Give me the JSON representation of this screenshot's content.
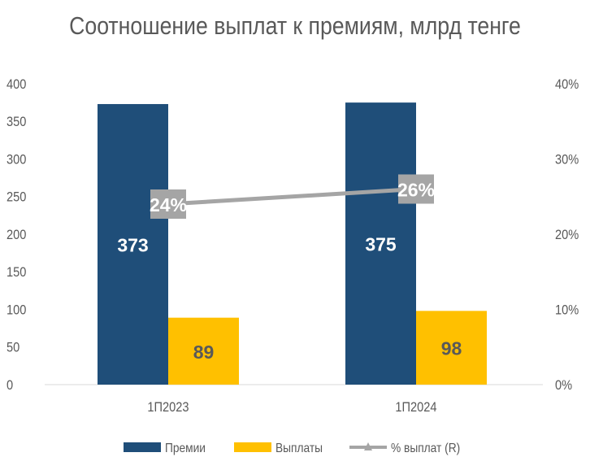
{
  "title": "Соотношение выплат к премиям, млрд тенге",
  "chart_data": {
    "type": "bar",
    "title": "Соотношение выплат к премиям, млрд тенге",
    "categories": [
      "1П2023",
      "1П2024"
    ],
    "series": [
      {
        "name": "Премии",
        "type": "bar",
        "values": [
          373,
          375
        ],
        "labels": [
          "373",
          "375"
        ],
        "color": "#1F4E79"
      },
      {
        "name": "Выплаты",
        "type": "bar",
        "values": [
          89,
          98
        ],
        "labels": [
          "89",
          "98"
        ],
        "color": "#FFC000"
      },
      {
        "name": "% выплат (R)",
        "type": "line",
        "axis": "right",
        "values": [
          0.24,
          0.26
        ],
        "labels": [
          "24%",
          "26%"
        ],
        "color": "#A5A5A5"
      }
    ],
    "y_left": {
      "min": 0,
      "max": 400,
      "ticks": [
        "0",
        "50",
        "100",
        "150",
        "200",
        "250",
        "300",
        "350",
        "400"
      ]
    },
    "y_right": {
      "min": 0,
      "max": 0.4,
      "ticks": [
        "0%",
        "10%",
        "20%",
        "30%",
        "40%"
      ]
    },
    "grid": false,
    "legend": "bottom"
  }
}
